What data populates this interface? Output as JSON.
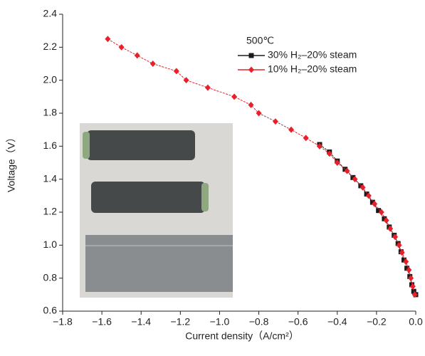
{
  "chart_data": {
    "type": "line",
    "xlabel": "Current density（A/cm²）",
    "ylabel": "Voltage（V）",
    "legend_title": "500℃",
    "xlim": [
      -1.8,
      0
    ],
    "ylim": [
      0.6,
      2.4
    ],
    "xticks": [
      {
        "value": -1.8,
        "label": "−1.8"
      },
      {
        "value": -1.6,
        "label": "−1.6"
      },
      {
        "value": -1.4,
        "label": "−1.4"
      },
      {
        "value": -1.2,
        "label": "−1.2"
      },
      {
        "value": -1.0,
        "label": "−1.0"
      },
      {
        "value": -0.8,
        "label": "−0.8"
      },
      {
        "value": -0.6,
        "label": "−0.6"
      },
      {
        "value": -0.4,
        "label": "−0.4"
      },
      {
        "value": -0.2,
        "label": "−0.2"
      },
      {
        "value": 0,
        "label": "0.0"
      }
    ],
    "yticks": [
      0.6,
      0.8,
      {
        "value": 1.0,
        "label": "1.0"
      },
      1.2,
      1.4,
      1.6,
      1.8,
      {
        "value": 2.0,
        "label": "2.0"
      },
      2.2,
      2.4
    ],
    "series": [
      {
        "name": "30% H₂–20% steam",
        "color": "#1a1a1a",
        "marker": "square",
        "x": [
          -0.49,
          -0.44,
          -0.4,
          -0.36,
          -0.32,
          -0.28,
          -0.25,
          -0.22,
          -0.19,
          -0.16,
          -0.135,
          -0.11,
          -0.09,
          -0.075,
          -0.06,
          -0.045,
          -0.03,
          -0.02,
          -0.01,
          0
        ],
        "values": [
          1.61,
          1.565,
          1.51,
          1.46,
          1.41,
          1.36,
          1.31,
          1.26,
          1.21,
          1.16,
          1.11,
          1.06,
          1.01,
          0.96,
          0.91,
          0.86,
          0.81,
          0.76,
          0.72,
          0.7
        ]
      },
      {
        "name": "10% H₂–20% steam",
        "color": "#e8202a",
        "marker": "diamond",
        "x": [
          -1.57,
          -1.5,
          -1.42,
          -1.34,
          -1.22,
          -1.17,
          -1.06,
          -0.925,
          -0.84,
          -0.8,
          -0.715,
          -0.635,
          -0.56,
          -0.49,
          -0.44,
          -0.4,
          -0.35,
          -0.31,
          -0.27,
          -0.24,
          -0.21,
          -0.175,
          -0.15,
          -0.13,
          -0.105,
          -0.085,
          -0.07,
          -0.05,
          -0.035,
          -0.025,
          -0.015,
          -0.005
        ],
        "values": [
          2.25,
          2.2,
          2.15,
          2.1,
          2.055,
          2.0,
          1.955,
          1.9,
          1.85,
          1.8,
          1.75,
          1.7,
          1.65,
          1.6,
          1.555,
          1.5,
          1.45,
          1.4,
          1.35,
          1.3,
          1.25,
          1.2,
          1.15,
          1.1,
          1.05,
          1.0,
          0.955,
          0.9,
          0.85,
          0.8,
          0.75,
          0.7
        ]
      }
    ]
  }
}
